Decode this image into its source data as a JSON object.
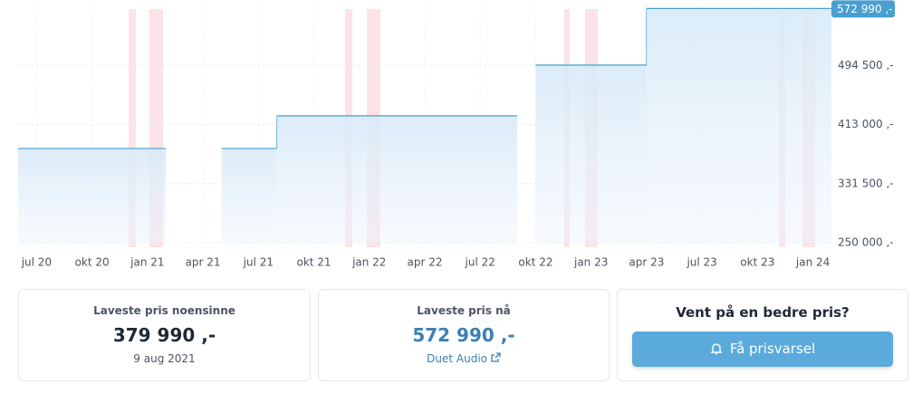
{
  "chart_data": {
    "type": "line",
    "x": [
      "2020-06",
      "2021-02",
      "2021-05",
      "2021-08",
      "2022-09",
      "2022-10",
      "2023-04",
      "2024-02"
    ],
    "series": [
      {
        "color": "#4a9fd0",
        "values": [
          379990,
          null,
          379990,
          424990,
          null,
          494990,
          572990,
          572990
        ]
      }
    ],
    "xlim": [
      "2020-06",
      "2024-02"
    ],
    "xticks": [
      {
        "value": "2020-07",
        "label": "jul 20"
      },
      {
        "value": "2020-10",
        "label": "okt 20"
      },
      {
        "value": "2021-01",
        "label": "jan 21"
      },
      {
        "value": "2021-04",
        "label": "apr 21"
      },
      {
        "value": "2021-07",
        "label": "jul 21"
      },
      {
        "value": "2021-10",
        "label": "okt 21"
      },
      {
        "value": "2022-01",
        "label": "jan 22"
      },
      {
        "value": "2022-04",
        "label": "apr 22"
      },
      {
        "value": "2022-07",
        "label": "jul 22"
      },
      {
        "value": "2022-10",
        "label": "okt 22"
      },
      {
        "value": "2023-01",
        "label": "jan 23"
      },
      {
        "value": "2023-04",
        "label": "apr 23"
      },
      {
        "value": "2023-07",
        "label": "jul 23"
      },
      {
        "value": "2023-10",
        "label": "okt 23"
      },
      {
        "value": "2024-01",
        "label": "jan 24"
      }
    ],
    "ylim": [
      250000,
      576000
    ],
    "yticks": [
      {
        "value": 250000,
        "label": "250 000 ,-"
      },
      {
        "value": 331500,
        "label": "331 500 ,-"
      },
      {
        "value": 413000,
        "label": "413 000 ,-"
      },
      {
        "value": 494500,
        "label": "494 500 ,-"
      }
    ],
    "grid": true,
    "annotations": [
      {
        "value": 572990,
        "label": "572 990 ,-"
      }
    ]
  },
  "cards": [
    {
      "title": "Laveste pris noensinne",
      "price": "379 990 ,-",
      "note": "9 aug 2021"
    },
    {
      "title": "Laveste pris nå",
      "price": "572 990 ,-",
      "link": "Duet Audio"
    },
    {
      "title": "Vent på en bedre pris?",
      "button": "Få prisvarsel"
    }
  ]
}
